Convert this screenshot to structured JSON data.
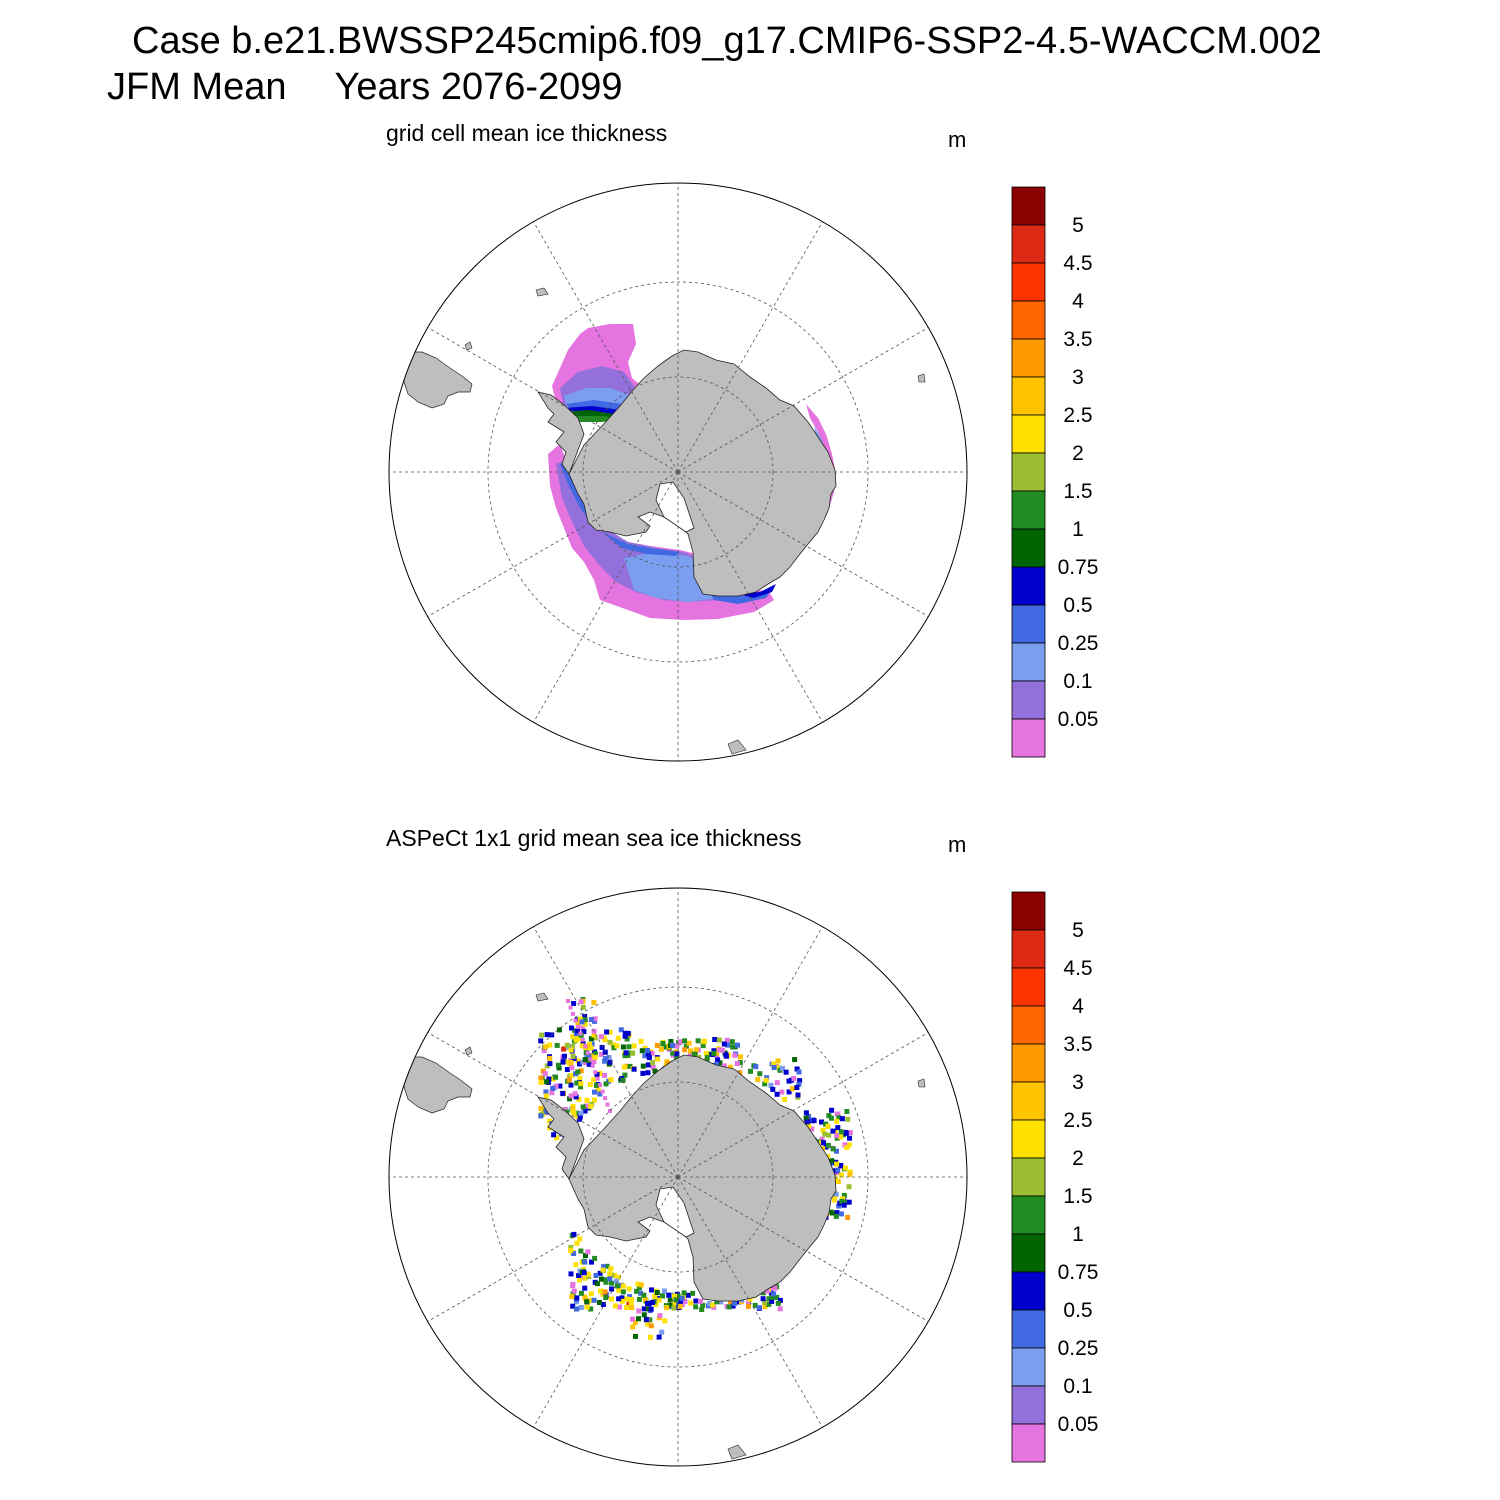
{
  "header": {
    "case_line": "Case b.e21.BWSSP245cmip6.f09_g17.CMIP6-SSP2-4.5-WACCM.002",
    "season": "JFM Mean",
    "years": "Years 2076-2099"
  },
  "colorbar": {
    "levels": [
      "5",
      "4.5",
      "4",
      "3.5",
      "3",
      "2.5",
      "2",
      "1.5",
      "1",
      "0.75",
      "0.5",
      "0.25",
      "0.1",
      "0.05"
    ],
    "colors": [
      "#8b0000",
      "#dd2a14",
      "#ff3300",
      "#ff6600",
      "#ff9900",
      "#ffc300",
      "#ffe100",
      "#9cbe32",
      "#228b22",
      "#006400",
      "#0000cd",
      "#4169e1",
      "#7b9ef0",
      "#9370db",
      "#e573e0"
    ]
  },
  "panels": [
    {
      "title": "grid cell mean ice thickness",
      "units": "m",
      "kind": "model"
    },
    {
      "title": "ASPeCt 1x1 grid mean sea ice thickness",
      "units": "m",
      "kind": "obs"
    }
  ],
  "map_style": {
    "land": "#bebebe",
    "coast": "#222222",
    "grid": "#555555"
  }
}
